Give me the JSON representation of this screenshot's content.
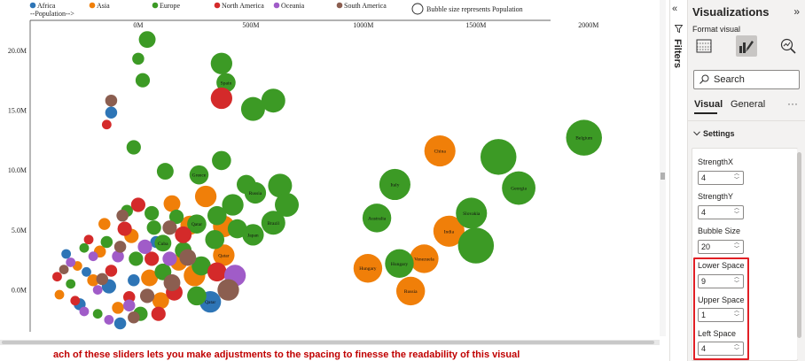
{
  "chart": {
    "legend": {
      "items": [
        {
          "label": "Africa",
          "color": "#2e75b6"
        },
        {
          "label": "Asia",
          "color": "#f07f09"
        },
        {
          "label": "Europe",
          "color": "#3c9a25"
        },
        {
          "label": "North America",
          "color": "#d42a2a"
        },
        {
          "label": "Oceania",
          "color": "#a05cc8"
        },
        {
          "label": "South America",
          "color": "#8b5e50"
        }
      ],
      "size_note": "Bubble size represents Population",
      "population_axis_label": "--Population-->"
    }
  },
  "chart_data": {
    "type": "scatter",
    "x_axis_ticks": [
      "0M",
      "500M",
      "1000M",
      "1500M",
      "2000M"
    ],
    "y_axis_ticks": [
      "20.0M",
      "15.0M",
      "10.0M",
      "5.0M",
      "0.0M"
    ],
    "xlim": [
      -480,
      2300
    ],
    "ylim": [
      -3.5,
      22.5
    ],
    "series": [
      {
        "name": "Africa",
        "color": "#2e75b6",
        "points": [
          {
            "x": -120,
            "y": 14.8,
            "size": 5
          },
          {
            "x": -130,
            "y": 0.3,
            "size": 6
          },
          {
            "x": -230,
            "y": 1.5,
            "size": 4
          },
          {
            "x": 320,
            "y": -1.0,
            "size": 9,
            "label": "Qatar"
          },
          {
            "x": -80,
            "y": -2.8,
            "size": 5
          },
          {
            "x": -260,
            "y": -1.2,
            "size": 5
          },
          {
            "x": -320,
            "y": 3.0,
            "size": 4
          },
          {
            "x": 80,
            "y": 4.0,
            "size": 5
          },
          {
            "x": -20,
            "y": 0.8,
            "size": 5
          }
        ]
      },
      {
        "name": "Asia",
        "color": "#f07f09",
        "points": [
          {
            "x": 1340,
            "y": 11.6,
            "size": 13,
            "label": "China"
          },
          {
            "x": 1380,
            "y": 4.9,
            "size": 13,
            "label": "India"
          },
          {
            "x": 1270,
            "y": 2.6,
            "size": 12,
            "label": "Venezuela"
          },
          {
            "x": 1020,
            "y": 1.8,
            "size": 12,
            "label": "Hungary"
          },
          {
            "x": 1210,
            "y": -0.1,
            "size": 12,
            "label": "Russia"
          },
          {
            "x": 300,
            "y": 7.8,
            "size": 9
          },
          {
            "x": 380,
            "y": 2.9,
            "size": 9,
            "label": "Qatar"
          },
          {
            "x": 150,
            "y": 7.2,
            "size": 7
          },
          {
            "x": 250,
            "y": 1.2,
            "size": 9
          },
          {
            "x": -150,
            "y": 5.5,
            "size": 5
          },
          {
            "x": -200,
            "y": 0.8,
            "size": 5
          },
          {
            "x": 50,
            "y": 1.0,
            "size": 7
          },
          {
            "x": -90,
            "y": -1.5,
            "size": 5
          },
          {
            "x": -350,
            "y": -0.4,
            "size": 4
          },
          {
            "x": 230,
            "y": 5.4,
            "size": 8
          },
          {
            "x": -30,
            "y": 4.5,
            "size": 6
          },
          {
            "x": 100,
            "y": -0.9,
            "size": 7
          },
          {
            "x": -170,
            "y": 3.2,
            "size": 5
          },
          {
            "x": 380,
            "y": 5.3,
            "size": 9
          },
          {
            "x": 180,
            "y": 2.3,
            "size": 7
          },
          {
            "x": -270,
            "y": 2.0,
            "size": 4
          }
        ]
      },
      {
        "name": "Europe",
        "color": "#3c9a25",
        "points": [
          {
            "x": 1980,
            "y": 12.7,
            "size": 15,
            "label": "Belgium"
          },
          {
            "x": 1600,
            "y": 11.1,
            "size": 15
          },
          {
            "x": 1690,
            "y": 8.5,
            "size": 14,
            "label": "Georgia"
          },
          {
            "x": 1480,
            "y": 6.4,
            "size": 13,
            "label": "Slovakia"
          },
          {
            "x": 1500,
            "y": 3.7,
            "size": 15
          },
          {
            "x": 1140,
            "y": 8.8,
            "size": 13,
            "label": "Italy"
          },
          {
            "x": 1060,
            "y": 6.0,
            "size": 12,
            "label": "Australia"
          },
          {
            "x": 1160,
            "y": 2.2,
            "size": 12,
            "label": "Hungary"
          },
          {
            "x": 600,
            "y": 15.8,
            "size": 10
          },
          {
            "x": 510,
            "y": 15.1,
            "size": 10
          },
          {
            "x": 370,
            "y": 18.9,
            "size": 9
          },
          {
            "x": 390,
            "y": 17.3,
            "size": 8,
            "label": "Spain"
          },
          {
            "x": 40,
            "y": 20.9,
            "size": 7
          },
          {
            "x": 0,
            "y": 19.3,
            "size": 5
          },
          {
            "x": 20,
            "y": 17.5,
            "size": 6
          },
          {
            "x": -20,
            "y": 11.9,
            "size": 6
          },
          {
            "x": 120,
            "y": 9.9,
            "size": 7
          },
          {
            "x": 370,
            "y": 10.8,
            "size": 8
          },
          {
            "x": 270,
            "y": 9.6,
            "size": 8,
            "label": "Greece"
          },
          {
            "x": 480,
            "y": 8.8,
            "size": 8
          },
          {
            "x": 520,
            "y": 8.1,
            "size": 9,
            "label": "Russia"
          },
          {
            "x": 630,
            "y": 8.7,
            "size": 10
          },
          {
            "x": 660,
            "y": 7.1,
            "size": 10
          },
          {
            "x": 600,
            "y": 5.6,
            "size": 10,
            "label": "Brazil"
          },
          {
            "x": 510,
            "y": 4.6,
            "size": 9,
            "label": "Japan"
          },
          {
            "x": 420,
            "y": 7.1,
            "size": 9
          },
          {
            "x": 350,
            "y": 6.2,
            "size": 8
          },
          {
            "x": 260,
            "y": 5.5,
            "size": 8,
            "label": "Qatar"
          },
          {
            "x": 440,
            "y": 5.1,
            "size": 8
          },
          {
            "x": 110,
            "y": 3.9,
            "size": 7,
            "label": "Cuba"
          },
          {
            "x": 170,
            "y": 6.1,
            "size": 6
          },
          {
            "x": 60,
            "y": 6.4,
            "size": 6
          },
          {
            "x": -50,
            "y": 6.6,
            "size": 5
          },
          {
            "x": 280,
            "y": 2.0,
            "size": 8
          },
          {
            "x": 200,
            "y": 3.3,
            "size": 7
          },
          {
            "x": 340,
            "y": 4.2,
            "size": 8
          },
          {
            "x": -10,
            "y": 2.6,
            "size": 6
          },
          {
            "x": -140,
            "y": 4.0,
            "size": 5
          },
          {
            "x": -300,
            "y": 0.5,
            "size": 4
          },
          {
            "x": 110,
            "y": 1.5,
            "size": 7
          },
          {
            "x": 10,
            "y": -2.0,
            "size": 6
          },
          {
            "x": -180,
            "y": -2.0,
            "size": 4
          },
          {
            "x": 260,
            "y": -0.5,
            "size": 8
          },
          {
            "x": 70,
            "y": 5.2,
            "size": 6
          },
          {
            "x": -240,
            "y": 3.5,
            "size": 4
          }
        ]
      },
      {
        "name": "North America",
        "color": "#d42a2a",
        "points": [
          {
            "x": 370,
            "y": 16.0,
            "size": 9
          },
          {
            "x": -140,
            "y": 13.8,
            "size": 4
          },
          {
            "x": 0,
            "y": 7.1,
            "size": 6
          },
          {
            "x": 350,
            "y": 1.5,
            "size": 8
          },
          {
            "x": -60,
            "y": 5.1,
            "size": 6
          },
          {
            "x": 160,
            "y": -0.2,
            "size": 7
          },
          {
            "x": 60,
            "y": 2.6,
            "size": 6
          },
          {
            "x": -220,
            "y": 4.2,
            "size": 4
          },
          {
            "x": -280,
            "y": -0.9,
            "size": 4
          },
          {
            "x": -120,
            "y": 1.6,
            "size": 5
          },
          {
            "x": 90,
            "y": -2.0,
            "size": 6
          },
          {
            "x": -40,
            "y": -0.6,
            "size": 5
          },
          {
            "x": 200,
            "y": 4.6,
            "size": 7
          },
          {
            "x": -360,
            "y": 1.1,
            "size": 4
          }
        ]
      },
      {
        "name": "Oceania",
        "color": "#a05cc8",
        "points": [
          {
            "x": 430,
            "y": 1.2,
            "size": 9
          },
          {
            "x": -180,
            "y": 0.0,
            "size": 4
          },
          {
            "x": -90,
            "y": 2.8,
            "size": 5
          },
          {
            "x": -240,
            "y": -1.8,
            "size": 4
          },
          {
            "x": 30,
            "y": 3.6,
            "size": 6
          },
          {
            "x": -130,
            "y": -2.5,
            "size": 4
          },
          {
            "x": -300,
            "y": 2.3,
            "size": 4
          },
          {
            "x": 140,
            "y": 2.6,
            "size": 6
          },
          {
            "x": -40,
            "y": -1.3,
            "size": 5
          },
          {
            "x": -200,
            "y": 2.8,
            "size": 4
          }
        ]
      },
      {
        "name": "South America",
        "color": "#8b5e50",
        "points": [
          {
            "x": -120,
            "y": 15.8,
            "size": 5
          },
          {
            "x": 400,
            "y": 0.0,
            "size": 9
          },
          {
            "x": 220,
            "y": 2.7,
            "size": 7
          },
          {
            "x": 140,
            "y": 5.2,
            "size": 6
          },
          {
            "x": -70,
            "y": 6.2,
            "size": 5
          },
          {
            "x": 40,
            "y": -0.5,
            "size": 6
          },
          {
            "x": -160,
            "y": 0.9,
            "size": 5
          },
          {
            "x": -80,
            "y": 3.6,
            "size": 5
          },
          {
            "x": -330,
            "y": 1.7,
            "size": 4
          },
          {
            "x": 150,
            "y": 0.6,
            "size": 7
          },
          {
            "x": -20,
            "y": -2.3,
            "size": 5
          }
        ]
      }
    ]
  },
  "filters": {
    "collapse_icon": "«",
    "label": "Filters"
  },
  "viz_pane": {
    "title": "Visualizations",
    "expand_icon": "»",
    "subtitle": "Format visual",
    "search_placeholder": "Search",
    "tabs": [
      "Visual",
      "General"
    ],
    "more": "···",
    "section": "Settings",
    "settings": [
      {
        "label": "StrengthX",
        "value": "4"
      },
      {
        "label": "StrengthY",
        "value": "4"
      },
      {
        "label": "Bubble Size",
        "value": "20"
      },
      {
        "label": "Lower Space",
        "value": "9"
      },
      {
        "label": "Upper Space",
        "value": "1"
      },
      {
        "label": "Left Space",
        "value": "4"
      }
    ]
  },
  "caption": "ach of these sliders lets you make adjustments to the spacing to finesse the readability of this visual"
}
